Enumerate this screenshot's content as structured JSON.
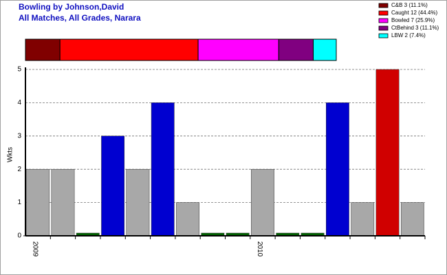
{
  "chart_data": [
    {
      "type": "stacked-hbar",
      "title": "Bowling by Johnson,David",
      "subtitle": "All Matches, All Grades, Narara",
      "series": [
        {
          "name": "C&B 3 (11.1%)",
          "color": "#800000",
          "values": [
            3
          ]
        },
        {
          "name": "Caught 12 (44.4%)",
          "color": "#ff0000",
          "values": [
            12
          ]
        },
        {
          "name": "Bowled 7 (25.9%)",
          "color": "#ff00ff",
          "values": [
            7
          ]
        },
        {
          "name": "CtBehind 3 (11.1%)",
          "color": "#800080",
          "values": [
            3
          ]
        },
        {
          "name": "LBW 2 (7.4%)",
          "color": "#00ffff",
          "values": [
            2
          ]
        }
      ]
    },
    {
      "type": "bar",
      "y_label": "Wkts",
      "categories": [
        "2009",
        null,
        null,
        null,
        null,
        null,
        null,
        null,
        null,
        "2010",
        null,
        null,
        null,
        null,
        null,
        null
      ],
      "values": [
        2,
        2,
        0,
        3,
        2,
        4,
        1,
        0,
        0,
        2,
        0,
        0,
        4,
        1,
        5,
        1
      ],
      "colors": [
        "#a8a8a8",
        "#a8a8a8",
        "#006000",
        "#0000d0",
        "#a8a8a8",
        "#0000d0",
        "#a8a8a8",
        "#006000",
        "#006000",
        "#a8a8a8",
        "#006000",
        "#006000",
        "#0000d0",
        "#a8a8a8",
        "#d00000",
        "#a8a8a8"
      ],
      "ylim": [
        0,
        5
      ],
      "yticks": [
        0,
        1,
        2,
        3,
        4,
        5
      ],
      "grid": true
    }
  ]
}
